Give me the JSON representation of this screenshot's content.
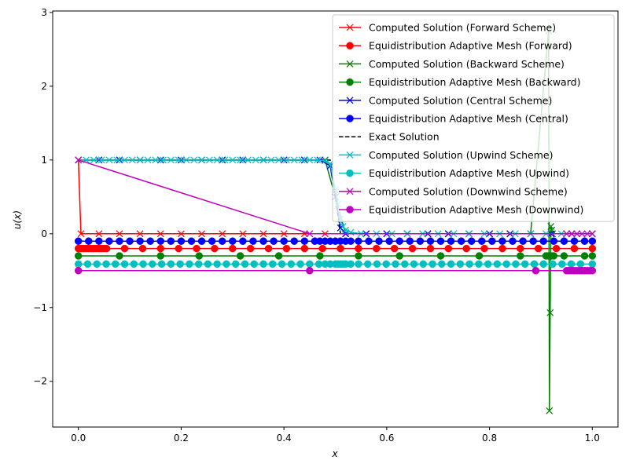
{
  "chart_data": {
    "type": "line",
    "xlabel": "x",
    "ylabel": "u(x)",
    "xlim": [
      -0.05,
      1.05
    ],
    "ylim": [
      -2.62,
      3.02
    ],
    "xticks": [
      "0.0",
      "0.2",
      "0.4",
      "0.6",
      "0.8",
      "1.0"
    ],
    "xtick_values": [
      0,
      0.2,
      0.4,
      0.6,
      0.8,
      1.0
    ],
    "yticks": [
      "−2",
      "−1",
      "0",
      "1",
      "2",
      "3"
    ],
    "ytick_values": [
      -2,
      -1,
      0,
      1,
      2,
      3
    ],
    "grid": false,
    "legend_position": "upper-right",
    "series": [
      {
        "name": "Computed Solution (Forward Scheme)",
        "color": "#ff0000",
        "marker": "x",
        "linestyle": "solid",
        "x": [
          0.0,
          0.005,
          0.04,
          0.08,
          0.12,
          0.16,
          0.2,
          0.24,
          0.28,
          0.32,
          0.36,
          0.4,
          0.44,
          0.48,
          0.52,
          0.56,
          0.6,
          0.64,
          0.68,
          0.72,
          0.76,
          0.8,
          0.84,
          0.88,
          0.92,
          0.96,
          1.0
        ],
        "y": [
          1.0,
          0.0,
          0.0,
          0.0,
          0.0,
          0.0,
          0.0,
          0.0,
          0.0,
          0.0,
          0.0,
          0.0,
          0.0,
          0.0,
          0.0,
          0.0,
          0.0,
          0.0,
          0.0,
          0.0,
          0.0,
          0.0,
          0.0,
          0.0,
          0.0,
          0.0,
          0.0
        ]
      },
      {
        "name": "Equidistribution Adaptive Mesh (Forward)",
        "color": "#ff0000",
        "marker": "o",
        "linestyle": "solid",
        "x": [
          0.0,
          0.005,
          0.01,
          0.015,
          0.02,
          0.025,
          0.03,
          0.035,
          0.04,
          0.045,
          0.05,
          0.055,
          0.09,
          0.125,
          0.16,
          0.195,
          0.23,
          0.265,
          0.3,
          0.335,
          0.37,
          0.405,
          0.44,
          0.475,
          0.51,
          0.545,
          0.58,
          0.615,
          0.65,
          0.685,
          0.72,
          0.755,
          0.79,
          0.825,
          0.86,
          0.895,
          0.93,
          0.965,
          1.0
        ],
        "y": [
          -0.2,
          -0.2,
          -0.2,
          -0.2,
          -0.2,
          -0.2,
          -0.2,
          -0.2,
          -0.2,
          -0.2,
          -0.2,
          -0.2,
          -0.2,
          -0.2,
          -0.2,
          -0.2,
          -0.2,
          -0.2,
          -0.2,
          -0.2,
          -0.2,
          -0.2,
          -0.2,
          -0.2,
          -0.2,
          -0.2,
          -0.2,
          -0.2,
          -0.2,
          -0.2,
          -0.2,
          -0.2,
          -0.2,
          -0.2,
          -0.2,
          -0.2,
          -0.2,
          -0.2,
          -0.2
        ]
      },
      {
        "name": "Computed Solution (Backward Scheme)",
        "color": "#008000",
        "marker": "x",
        "linestyle": "solid",
        "x": [
          0.0,
          0.04,
          0.08,
          0.12,
          0.16,
          0.2,
          0.24,
          0.28,
          0.32,
          0.36,
          0.4,
          0.44,
          0.48,
          0.52,
          0.56,
          0.6,
          0.64,
          0.68,
          0.72,
          0.76,
          0.8,
          0.84,
          0.88,
          0.915,
          0.9165,
          0.918,
          0.9195,
          0.921,
          0.9225,
          0.95,
          1.0
        ],
        "y": [
          1.0,
          1.0,
          1.0,
          1.0,
          1.0,
          1.0,
          1.0,
          1.0,
          1.0,
          1.0,
          1.0,
          1.0,
          1.0,
          0.0,
          0.0,
          0.0,
          0.0,
          0.0,
          0.0,
          0.0,
          0.0,
          0.0,
          0.0,
          2.75,
          -2.4,
          -1.07,
          0.1,
          0.05,
          0.0,
          0.0,
          0.0
        ]
      },
      {
        "name": "Equidistribution Adaptive Mesh (Backward)",
        "color": "#008000",
        "marker": "o",
        "linestyle": "solid",
        "x": [
          0.0,
          0.08,
          0.16,
          0.235,
          0.315,
          0.39,
          0.47,
          0.545,
          0.625,
          0.705,
          0.78,
          0.86,
          0.91,
          0.915,
          0.92,
          0.925,
          0.945,
          0.985,
          1.0
        ],
        "y": [
          -0.3,
          -0.3,
          -0.3,
          -0.3,
          -0.3,
          -0.3,
          -0.3,
          -0.3,
          -0.3,
          -0.3,
          -0.3,
          -0.3,
          -0.3,
          -0.3,
          -0.3,
          -0.3,
          -0.3,
          -0.3,
          -0.3
        ]
      },
      {
        "name": "Computed Solution (Central Scheme)",
        "color": "#0000ff",
        "marker": "x",
        "linestyle": "solid",
        "x": [
          0.0,
          0.04,
          0.08,
          0.12,
          0.16,
          0.2,
          0.24,
          0.28,
          0.32,
          0.36,
          0.4,
          0.44,
          0.47,
          0.49,
          0.5,
          0.51,
          0.52,
          0.56,
          0.6,
          0.64,
          0.68,
          0.72,
          0.76,
          0.8,
          0.84,
          0.88,
          0.92,
          0.96,
          1.0
        ],
        "y": [
          1.0,
          1.0,
          1.0,
          1.0,
          1.0,
          1.0,
          1.0,
          1.0,
          1.0,
          1.0,
          1.0,
          1.0,
          1.0,
          0.92,
          0.5,
          0.08,
          0.0,
          0.0,
          0.0,
          0.0,
          0.0,
          0.0,
          0.0,
          0.0,
          0.0,
          0.0,
          0.0,
          0.0,
          0.0
        ]
      },
      {
        "name": "Equidistribution Adaptive Mesh (Central)",
        "color": "#0000ff",
        "marker": "o",
        "linestyle": "solid",
        "x": [
          0.0,
          0.02,
          0.04,
          0.06,
          0.08,
          0.1,
          0.12,
          0.14,
          0.16,
          0.18,
          0.2,
          0.22,
          0.24,
          0.26,
          0.28,
          0.3,
          0.32,
          0.34,
          0.36,
          0.38,
          0.4,
          0.42,
          0.44,
          0.46,
          0.47,
          0.48,
          0.49,
          0.5,
          0.51,
          0.52,
          0.53,
          0.545,
          0.565,
          0.585,
          0.605,
          0.625,
          0.645,
          0.665,
          0.685,
          0.705,
          0.725,
          0.745,
          0.765,
          0.785,
          0.805,
          0.825,
          0.845,
          0.865,
          0.885,
          0.905,
          0.925,
          0.945,
          0.965,
          0.985,
          1.0
        ],
        "y": [
          -0.1,
          -0.1,
          -0.1,
          -0.1,
          -0.1,
          -0.1,
          -0.1,
          -0.1,
          -0.1,
          -0.1,
          -0.1,
          -0.1,
          -0.1,
          -0.1,
          -0.1,
          -0.1,
          -0.1,
          -0.1,
          -0.1,
          -0.1,
          -0.1,
          -0.1,
          -0.1,
          -0.1,
          -0.1,
          -0.1,
          -0.1,
          -0.1,
          -0.1,
          -0.1,
          -0.1,
          -0.1,
          -0.1,
          -0.1,
          -0.1,
          -0.1,
          -0.1,
          -0.1,
          -0.1,
          -0.1,
          -0.1,
          -0.1,
          -0.1,
          -0.1,
          -0.1,
          -0.1,
          -0.1,
          -0.1,
          -0.1,
          -0.1,
          -0.1,
          -0.1,
          -0.1,
          -0.1,
          -0.1
        ]
      },
      {
        "name": "Exact Solution",
        "color": "#000000",
        "marker": "none",
        "linestyle": "dashed",
        "x": [
          0.0,
          0.49,
          0.5,
          0.51,
          1.0
        ],
        "y": [
          1.0,
          1.0,
          0.5,
          0.0,
          0.0
        ]
      },
      {
        "name": "Computed Solution (Upwind Scheme)",
        "color": "#00bfbf",
        "marker": "x",
        "linestyle": "solid",
        "x": [
          0.0,
          0.015,
          0.03,
          0.045,
          0.06,
          0.075,
          0.09,
          0.105,
          0.12,
          0.135,
          0.15,
          0.165,
          0.18,
          0.195,
          0.21,
          0.225,
          0.24,
          0.255,
          0.27,
          0.285,
          0.3,
          0.315,
          0.33,
          0.345,
          0.36,
          0.375,
          0.39,
          0.405,
          0.42,
          0.435,
          0.45,
          0.465,
          0.48,
          0.49,
          0.5,
          0.505,
          0.51,
          0.515,
          0.52,
          0.53,
          0.55,
          0.58,
          0.61,
          0.64,
          0.67,
          0.7,
          0.73,
          0.76,
          0.79,
          0.82,
          0.85,
          0.88,
          0.91,
          0.94,
          0.97,
          1.0
        ],
        "y": [
          1.0,
          1.0,
          1.0,
          1.0,
          1.0,
          1.0,
          1.0,
          1.0,
          1.0,
          1.0,
          1.0,
          1.0,
          1.0,
          1.0,
          1.0,
          1.0,
          1.0,
          1.0,
          1.0,
          1.0,
          1.0,
          1.0,
          1.0,
          1.0,
          1.0,
          1.0,
          1.0,
          1.0,
          1.0,
          1.0,
          1.0,
          1.0,
          0.99,
          0.95,
          0.6,
          0.4,
          0.2,
          0.1,
          0.05,
          0.02,
          0.0,
          0.0,
          0.0,
          0.0,
          0.0,
          0.0,
          0.0,
          0.0,
          0.0,
          0.0,
          0.0,
          0.0,
          0.0,
          0.0,
          0.0,
          0.0
        ]
      },
      {
        "name": "Equidistribution Adaptive Mesh (Upwind)",
        "color": "#00bfbf",
        "marker": "o",
        "linestyle": "solid",
        "x": [
          0.0,
          0.018,
          0.036,
          0.054,
          0.072,
          0.09,
          0.108,
          0.126,
          0.144,
          0.162,
          0.18,
          0.198,
          0.216,
          0.234,
          0.252,
          0.27,
          0.288,
          0.306,
          0.324,
          0.342,
          0.36,
          0.378,
          0.396,
          0.414,
          0.432,
          0.45,
          0.468,
          0.48,
          0.49,
          0.5,
          0.505,
          0.51,
          0.515,
          0.52,
          0.53,
          0.545,
          0.563,
          0.581,
          0.599,
          0.617,
          0.635,
          0.653,
          0.671,
          0.689,
          0.707,
          0.725,
          0.743,
          0.761,
          0.779,
          0.797,
          0.815,
          0.833,
          0.851,
          0.869,
          0.887,
          0.905,
          0.923,
          0.941,
          0.959,
          0.977,
          1.0
        ],
        "y": [
          -0.41,
          -0.41,
          -0.41,
          -0.41,
          -0.41,
          -0.41,
          -0.41,
          -0.41,
          -0.41,
          -0.41,
          -0.41,
          -0.41,
          -0.41,
          -0.41,
          -0.41,
          -0.41,
          -0.41,
          -0.41,
          -0.41,
          -0.41,
          -0.41,
          -0.41,
          -0.41,
          -0.41,
          -0.41,
          -0.41,
          -0.41,
          -0.41,
          -0.41,
          -0.41,
          -0.41,
          -0.41,
          -0.41,
          -0.41,
          -0.41,
          -0.41,
          -0.41,
          -0.41,
          -0.41,
          -0.41,
          -0.41,
          -0.41,
          -0.41,
          -0.41,
          -0.41,
          -0.41,
          -0.41,
          -0.41,
          -0.41,
          -0.41,
          -0.41,
          -0.41,
          -0.41,
          -0.41,
          -0.41,
          -0.41,
          -0.41,
          -0.41,
          -0.41,
          -0.41,
          -0.41
        ]
      },
      {
        "name": "Computed Solution (Downwind Scheme)",
        "color": "#bf00bf",
        "marker": "x",
        "linestyle": "solid",
        "x": [
          0.0,
          0.45,
          0.95,
          0.96,
          0.97,
          0.98,
          0.99,
          1.0
        ],
        "y": [
          1.0,
          0.0,
          0.0,
          0.0,
          0.0,
          0.0,
          0.0,
          0.0
        ]
      },
      {
        "name": "Equidistribution Adaptive Mesh (Downwind)",
        "color": "#bf00bf",
        "marker": "o",
        "linestyle": "solid",
        "x": [
          0.0,
          0.45,
          0.89,
          0.95,
          0.955,
          0.96,
          0.965,
          0.97,
          0.975,
          0.98,
          0.985,
          0.99,
          0.995,
          1.0
        ],
        "y": [
          -0.5,
          -0.5,
          -0.5,
          -0.5,
          -0.5,
          -0.5,
          -0.5,
          -0.5,
          -0.5,
          -0.5,
          -0.5,
          -0.5,
          -0.5,
          -0.5
        ]
      }
    ]
  }
}
